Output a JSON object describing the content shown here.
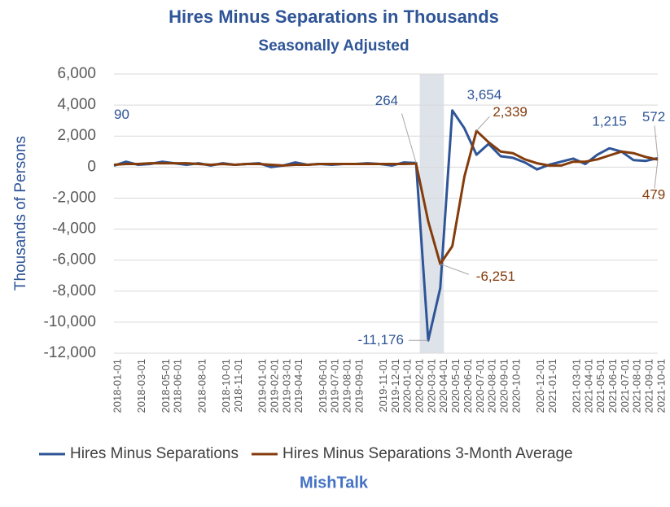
{
  "chart_data": {
    "type": "line",
    "title": "Hires Minus Separations in Thousands",
    "subtitle": "Seasonally Adjusted",
    "y_label": "Thousands of Persons",
    "footer": "MishTalk",
    "categories": [
      "2018-01-01",
      null,
      "2018-03-01",
      null,
      "2018-05-01",
      "2018-06-01",
      null,
      "2018-08-01",
      null,
      "2018-10-01",
      "2018-11-01",
      null,
      "2019-01-01",
      "2019-02-01",
      "2019-03-01",
      "2019-04-01",
      null,
      "2019-06-01",
      "2019-07-01",
      "2019-08-01",
      "2019-09-01",
      null,
      "2019-11-01",
      "2019-12-01",
      "2020-01-01",
      "2020-02-01",
      "2020-03-01",
      "2020-04-01",
      "2020-05-01",
      "2020-06-01",
      "2020-07-01",
      "2020-08-01",
      "2020-09-01",
      "2020-10-01",
      null,
      "2020-12-01",
      "2021-01-01",
      null,
      "2021-03-01",
      "2021-04-01",
      "2021-05-01",
      "2021-06-01",
      "2021-07-01",
      "2021-08-01",
      "2021-09-01",
      "2021-10-01"
    ],
    "series": [
      {
        "name": "Hires Minus Separations",
        "color": "#2f5597",
        "values": [
          90,
          350,
          150,
          200,
          350,
          250,
          150,
          250,
          100,
          250,
          150,
          200,
          250,
          0,
          100,
          300,
          150,
          200,
          150,
          200,
          200,
          250,
          200,
          100,
          300,
          264,
          -11176,
          -7800,
          3654,
          2500,
          800,
          1500,
          700,
          600,
          300,
          -150,
          150,
          350,
          550,
          200,
          800,
          1215,
          1000,
          450,
          400,
          572
        ],
        "value_labels": [
          "90",
          null,
          null,
          null,
          null,
          null,
          null,
          null,
          null,
          null,
          null,
          null,
          null,
          null,
          null,
          null,
          null,
          null,
          null,
          null,
          null,
          null,
          null,
          null,
          null,
          "264",
          "-11,176",
          null,
          "3,654",
          null,
          null,
          null,
          null,
          null,
          null,
          null,
          null,
          null,
          null,
          null,
          null,
          "1,215",
          null,
          null,
          null,
          "572"
        ]
      },
      {
        "name": "Hires Minus Separations 3-Month Average",
        "color": "#843c0c",
        "values": [
          150,
          200,
          200,
          250,
          250,
          250,
          250,
          200,
          150,
          200,
          150,
          200,
          200,
          150,
          100,
          150,
          150,
          200,
          200,
          200,
          200,
          200,
          200,
          200,
          200,
          220,
          -3500,
          -6251,
          -5100,
          -600,
          2339,
          1600,
          1000,
          900,
          500,
          250,
          100,
          100,
          350,
          350,
          500,
          750,
          1000,
          900,
          650,
          479
        ],
        "value_labels": [
          null,
          null,
          null,
          null,
          null,
          null,
          null,
          null,
          null,
          null,
          null,
          null,
          null,
          null,
          null,
          null,
          null,
          null,
          null,
          null,
          null,
          null,
          null,
          null,
          null,
          null,
          null,
          "-6,251",
          null,
          null,
          "2,339",
          null,
          null,
          null,
          null,
          null,
          null,
          null,
          null,
          null,
          null,
          null,
          null,
          null,
          null,
          "479"
        ]
      }
    ],
    "ylim": [
      -12000,
      6000
    ],
    "yticks": [
      {
        "value": -12000,
        "label": "-12,000"
      },
      {
        "value": -10000,
        "label": "-10,000"
      },
      {
        "value": -8000,
        "label": "-8,000"
      },
      {
        "value": -6000,
        "label": "-6,000"
      },
      {
        "value": -4000,
        "label": "-4,000"
      },
      {
        "value": -2000,
        "label": "-2,000"
      },
      0,
      {
        "value": 2000,
        "label": "2,000"
      },
      {
        "value": 4000,
        "label": "4,000"
      },
      {
        "value": 6000,
        "label": "6,000"
      }
    ],
    "grid": true
  }
}
